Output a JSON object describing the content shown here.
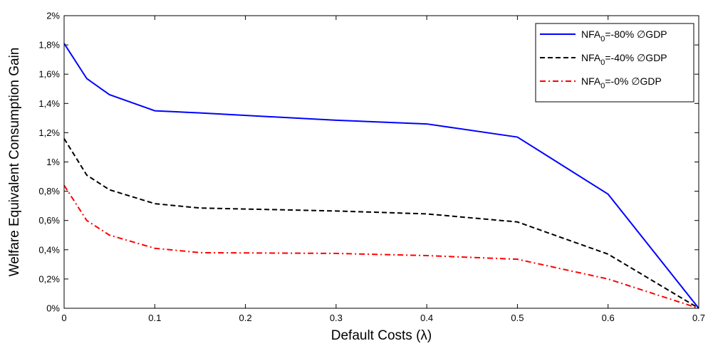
{
  "chart_data": {
    "type": "line",
    "title": "",
    "xlabel": "Default Costs (λ)",
    "ylabel": "Welfare Equivalent Consumption Gain",
    "xlim": [
      0,
      0.7
    ],
    "ylim": [
      0,
      2
    ],
    "x_ticks": [
      0,
      0.1,
      0.2,
      0.3,
      0.4,
      0.5,
      0.6,
      0.7
    ],
    "x_tick_labels": [
      "0",
      "0.1",
      "0.2",
      "0.3",
      "0.4",
      "0.5",
      "0.6",
      "0.7"
    ],
    "y_ticks": [
      0,
      0.2,
      0.4,
      0.6,
      0.8,
      1.0,
      1.2,
      1.4,
      1.6,
      1.8,
      2.0
    ],
    "y_tick_labels": [
      "0%",
      "0,2%",
      "0,4%",
      "0,6%",
      "0,8%",
      "1%",
      "1,2%",
      "1,4%",
      "1,6%",
      "1,8%",
      "2%"
    ],
    "y_unit": "%",
    "grid": false,
    "legend_position": "top-right",
    "x": [
      0,
      0.025,
      0.05,
      0.1,
      0.15,
      0.3,
      0.4,
      0.5,
      0.6,
      0.7
    ],
    "series": [
      {
        "name_prefix": "NFA",
        "name_subscript": "0",
        "name_suffix": "=-80% ∅GDP",
        "color": "#0000ff",
        "style": "solid",
        "values": [
          1.81,
          1.57,
          1.46,
          1.35,
          1.335,
          1.285,
          1.26,
          1.17,
          0.78,
          0.0
        ]
      },
      {
        "name_prefix": "NFA",
        "name_subscript": "0",
        "name_suffix": "=-40% ∅GDP",
        "color": "#000000",
        "style": "dashed",
        "values": [
          1.16,
          0.91,
          0.81,
          0.715,
          0.685,
          0.665,
          0.645,
          0.59,
          0.37,
          0.0
        ]
      },
      {
        "name_prefix": "NFA",
        "name_subscript": "0",
        "name_suffix": "=-0% ∅GDP",
        "color": "#ff0000",
        "style": "dashdot",
        "values": [
          0.84,
          0.6,
          0.5,
          0.41,
          0.38,
          0.375,
          0.36,
          0.335,
          0.2,
          0.0
        ]
      }
    ]
  }
}
